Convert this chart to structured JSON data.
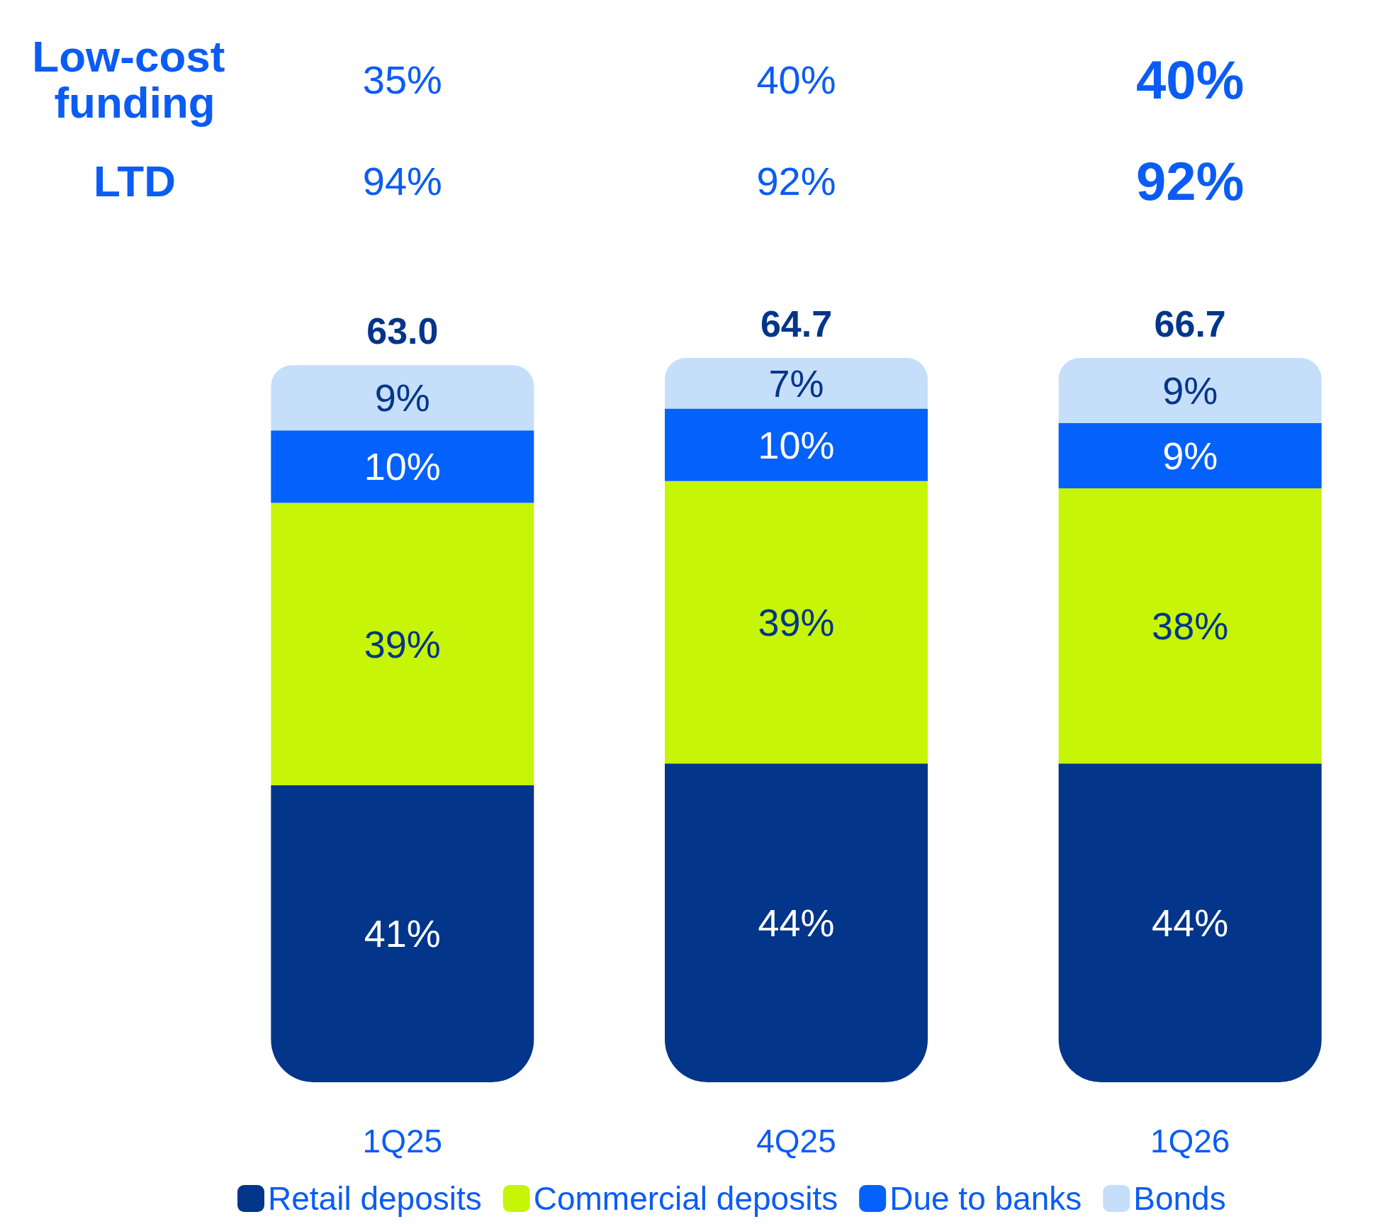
{
  "chart_data": {
    "type": "bar",
    "stacked": true,
    "categories": [
      "1Q25",
      "4Q25",
      "1Q26"
    ],
    "series": [
      {
        "name": "Retail deposits",
        "color": "#03358a",
        "values": [
          41,
          44,
          44
        ],
        "value_labels": [
          "41%",
          "44%",
          "44%"
        ]
      },
      {
        "name": "Commercial deposits",
        "color": "#c6f508",
        "values": [
          39,
          39,
          38
        ],
        "value_labels": [
          "39%",
          "39%",
          "38%"
        ]
      },
      {
        "name": "Due to banks",
        "color": "#0561fb",
        "values": [
          10,
          10,
          9
        ],
        "value_labels": [
          "10%",
          "10%",
          "9%"
        ]
      },
      {
        "name": "Bonds",
        "color": "#c5dffa",
        "values": [
          9,
          7,
          9
        ],
        "value_labels": [
          "9%",
          "7%",
          "9%"
        ]
      }
    ],
    "annotations": [
      "Low-cost funding",
      "35%",
      "40%",
      "40%",
      "LTD",
      "94%",
      "92%",
      "92%",
      {
        "text": "63.0",
        "x": "1Q25",
        "y": 99
      },
      {
        "text": "64.7",
        "x": "4Q25",
        "y": 100
      },
      {
        "text": "66.7",
        "x": "1Q26",
        "y": 100
      }
    ],
    "legend": "bottom"
  }
}
